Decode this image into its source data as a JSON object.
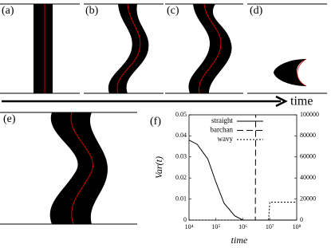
{
  "panels": [
    {
      "label": "(a)"
    },
    {
      "label": "(b)"
    },
    {
      "label": "(c)"
    },
    {
      "label": "(d)"
    },
    {
      "label": "(e)"
    }
  ],
  "arrow_label": "time",
  "chart_data": {
    "type": "line",
    "panel_label": "(f)",
    "xlabel": "time",
    "ylabel": "Var(t)",
    "x": [
      10000,
      20000,
      50000,
      100000,
      200000,
      500000,
      1000000,
      2900000,
      3000000,
      9000000,
      10000000,
      100000000
    ],
    "log_x": true,
    "series": [
      {
        "name": "straight",
        "color": "#000000",
        "dash": "solid",
        "axis": "y",
        "values": [
          0.038,
          0.036,
          0.029,
          0.018,
          0.008,
          0.002,
          0,
          0,
          0,
          0,
          0,
          0
        ]
      },
      {
        "name": "barchan",
        "color": "#000000",
        "dash": "dashed",
        "axis": "y2",
        "values": [
          null,
          null,
          null,
          null,
          null,
          null,
          0,
          0,
          100000,
          null,
          null,
          null
        ]
      },
      {
        "name": "wavy",
        "color": "#000000",
        "dash": "dotted",
        "axis": "y2",
        "values": [
          0,
          0,
          0,
          0,
          0,
          0,
          0,
          0,
          0,
          0,
          17000,
          17000
        ]
      }
    ],
    "xlim": [
      10000,
      100000000
    ],
    "xticks": [
      {
        "value": 10000,
        "label": "10⁴"
      },
      {
        "value": 100000,
        "label": "10⁵"
      },
      {
        "value": 1000000,
        "label": "10⁶"
      },
      {
        "value": 10000000,
        "label": "10⁷"
      },
      {
        "value": 100000000,
        "label": "10⁸"
      }
    ],
    "ylim": [
      0,
      0.05
    ],
    "yticks": [
      0,
      0.01,
      0.02,
      0.03,
      0.04,
      0.05
    ],
    "y2lim": [
      0,
      100000
    ],
    "y2ticks": [
      0,
      20000,
      40000,
      60000,
      80000,
      100000
    ],
    "legend": "top"
  }
}
